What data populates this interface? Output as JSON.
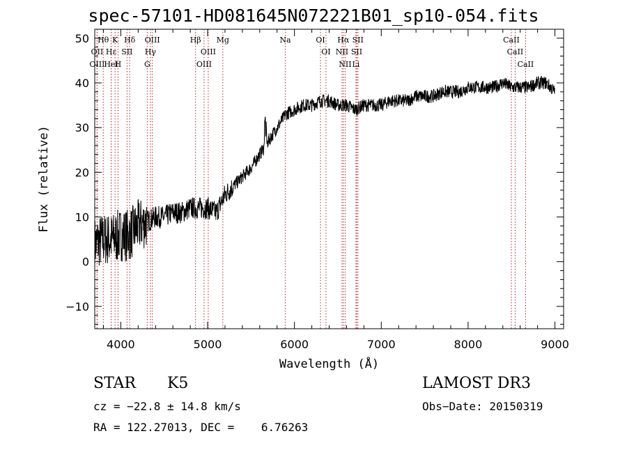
{
  "chart_data": {
    "type": "line",
    "title": "spec-57101-HD081645N072221B01_sp10-054.fits",
    "xlabel": "Wavelength (Å)",
    "ylabel": "Flux (relative)",
    "xlim": [
      3700,
      9100
    ],
    "ylim": [
      -15,
      52
    ],
    "xticks": [
      4000,
      5000,
      6000,
      7000,
      8000,
      9000
    ],
    "yticks": [
      -10,
      0,
      10,
      20,
      30,
      40,
      50
    ],
    "grid": false,
    "series": [
      {
        "name": "spectrum",
        "x": [
          3700,
          3800,
          3900,
          4000,
          4100,
          4200,
          4300,
          4400,
          4500,
          4600,
          4700,
          4800,
          4900,
          5000,
          5100,
          5200,
          5300,
          5400,
          5500,
          5600,
          5700,
          5800,
          5900,
          6000,
          6100,
          6200,
          6300,
          6400,
          6500,
          6600,
          6700,
          6800,
          6900,
          7000,
          7100,
          7200,
          7300,
          7400,
          7500,
          7600,
          7700,
          7800,
          7900,
          8000,
          8100,
          8200,
          8300,
          8400,
          8500,
          8600,
          8700,
          8800,
          8900,
          9000
        ],
        "y": [
          4,
          5,
          5,
          6,
          6,
          8,
          9,
          10,
          10,
          11,
          11,
          12,
          12,
          12,
          11,
          15,
          17,
          19,
          21,
          24,
          27,
          30,
          33,
          34,
          35,
          35,
          36,
          36,
          35,
          35,
          34,
          35,
          35,
          35,
          36,
          36,
          36,
          37,
          37,
          37,
          38,
          38,
          38,
          39,
          39,
          39,
          39,
          40,
          39,
          39,
          39,
          40,
          40,
          38
        ]
      }
    ],
    "lines": [
      {
        "label": "Hθ",
        "x": 3798
      },
      {
        "label": "OII",
        "x": 3727
      },
      {
        "label": "OIII",
        "x": 3727
      },
      {
        "label": "Hε",
        "x": 3889
      },
      {
        "label": "HeI",
        "x": 3889
      },
      {
        "label": "K",
        "x": 3934
      },
      {
        "label": "H",
        "x": 3968
      },
      {
        "label": "SII",
        "x": 4072
      },
      {
        "label": "Hδ",
        "x": 4102
      },
      {
        "label": "OIII",
        "x": 4363
      },
      {
        "label": "Hγ",
        "x": 4341
      },
      {
        "label": "G",
        "x": 4305
      },
      {
        "label": "Hβ",
        "x": 4861
      },
      {
        "label": "OIII",
        "x": 5007
      },
      {
        "label": "OIII",
        "x": 4959
      },
      {
        "label": "Mg",
        "x": 5175
      },
      {
        "label": "Na",
        "x": 5894
      },
      {
        "label": "OI",
        "x": 6300
      },
      {
        "label": "OI",
        "x": 6363
      },
      {
        "label": "Hα",
        "x": 6563
      },
      {
        "label": "NII",
        "x": 6548
      },
      {
        "label": "NII",
        "x": 6584
      },
      {
        "label": "SII",
        "x": 6717
      },
      {
        "label": "SII",
        "x": 6731
      },
      {
        "label": "Li",
        "x": 6708
      },
      {
        "label": "CaII",
        "x": 8498
      },
      {
        "label": "CaII",
        "x": 8542
      },
      {
        "label": "CaII",
        "x": 8662
      }
    ]
  },
  "info": {
    "class": "STAR",
    "subclass": "K5",
    "survey": "LAMOST DR3",
    "cz": "cz = −22.8 ± 14.8 km/s",
    "obs_date": "Obs−Date: 20150319",
    "radec": "RA = 122.27013, DEC =    6.76263"
  }
}
